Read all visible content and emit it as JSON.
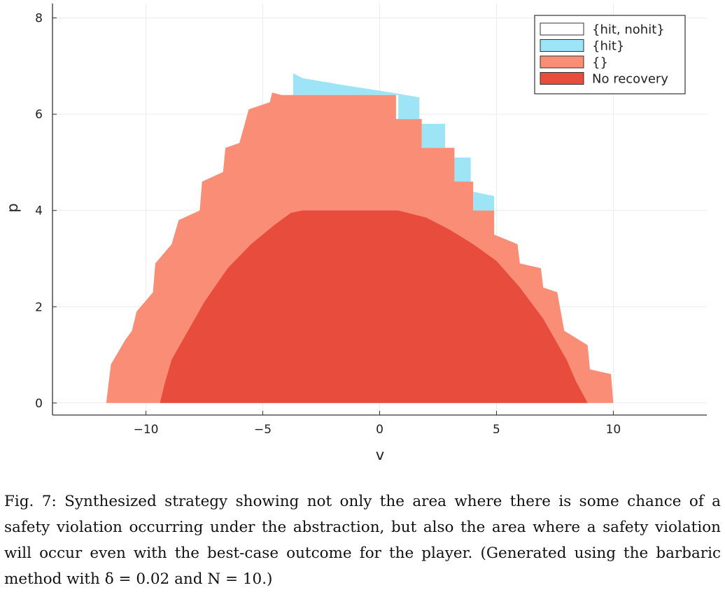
{
  "chart_data": {
    "type": "area",
    "title": "",
    "xlabel": "v",
    "ylabel": "p",
    "xlim": [
      -14,
      14
    ],
    "ylim": [
      -0.25,
      8.3
    ],
    "x_ticks": [
      -10,
      -5,
      0,
      5,
      10
    ],
    "x_tick_labels": [
      "−10",
      "−5",
      "0",
      "5",
      "10"
    ],
    "y_ticks": [
      0,
      2,
      4,
      6,
      8
    ],
    "y_tick_labels": [
      "0",
      "2",
      "4",
      "6",
      "8"
    ],
    "grid": true,
    "legend_position": "top-right",
    "legend": [
      {
        "label": "{hit, nohit}",
        "color": "#ffffff"
      },
      {
        "label": "{hit}",
        "color": "#9de4f7"
      },
      {
        "label": "{}",
        "color": "#f98d76"
      },
      {
        "label": "No recovery",
        "color": "#e74c3c"
      }
    ],
    "series": [
      {
        "name": "{hit}",
        "color": "#9de4f7",
        "outline": [
          [
            -3.7,
            6.4
          ],
          [
            -3.7,
            6.85
          ],
          [
            -3.3,
            6.75
          ],
          [
            -1.5,
            6.6
          ],
          [
            0.5,
            6.45
          ],
          [
            1.7,
            6.35
          ],
          [
            1.7,
            5.8
          ],
          [
            2.8,
            5.8
          ],
          [
            2.8,
            5.1
          ],
          [
            3.9,
            5.1
          ],
          [
            3.9,
            4.4
          ],
          [
            4.9,
            4.3
          ],
          [
            4.9,
            4.0
          ],
          [
            4.0,
            4.0
          ],
          [
            4.0,
            4.6
          ],
          [
            3.2,
            4.6
          ],
          [
            3.2,
            5.3
          ],
          [
            1.8,
            5.3
          ],
          [
            1.8,
            5.9
          ],
          [
            0.8,
            5.9
          ],
          [
            0.8,
            6.4
          ]
        ]
      },
      {
        "name": "{}",
        "color": "#f98d76",
        "outline": [
          [
            -11.7,
            0
          ],
          [
            -11.6,
            0.4
          ],
          [
            -11.5,
            0.8
          ],
          [
            -10.9,
            1.3
          ],
          [
            -10.6,
            1.5
          ],
          [
            -10.4,
            1.9
          ],
          [
            -9.7,
            2.3
          ],
          [
            -9.6,
            2.9
          ],
          [
            -8.9,
            3.3
          ],
          [
            -8.6,
            3.8
          ],
          [
            -7.7,
            4.0
          ],
          [
            -7.6,
            4.6
          ],
          [
            -6.7,
            4.8
          ],
          [
            -6.6,
            5.3
          ],
          [
            -6.0,
            5.4
          ],
          [
            -5.6,
            6.1
          ],
          [
            -4.7,
            6.25
          ],
          [
            -4.6,
            6.45
          ],
          [
            -4.2,
            6.4
          ],
          [
            0.7,
            6.4
          ],
          [
            0.7,
            5.9
          ],
          [
            1.8,
            5.9
          ],
          [
            1.8,
            5.3
          ],
          [
            3.2,
            5.3
          ],
          [
            3.2,
            4.6
          ],
          [
            4.0,
            4.6
          ],
          [
            4.0,
            4.0
          ],
          [
            4.9,
            4.0
          ],
          [
            4.9,
            3.5
          ],
          [
            5.9,
            3.3
          ],
          [
            6.0,
            2.9
          ],
          [
            6.9,
            2.8
          ],
          [
            7.0,
            2.4
          ],
          [
            7.6,
            2.3
          ],
          [
            7.9,
            1.5
          ],
          [
            8.9,
            1.2
          ],
          [
            9.0,
            0.7
          ],
          [
            9.9,
            0.6
          ],
          [
            10.0,
            0
          ]
        ]
      },
      {
        "name": "No recovery",
        "color": "#e74c3c",
        "outline": [
          [
            -9.4,
            0
          ],
          [
            -9.2,
            0.4
          ],
          [
            -8.9,
            0.9
          ],
          [
            -8.2,
            1.5
          ],
          [
            -7.5,
            2.1
          ],
          [
            -6.5,
            2.8
          ],
          [
            -5.5,
            3.3
          ],
          [
            -4.5,
            3.7
          ],
          [
            -3.8,
            3.95
          ],
          [
            -3.3,
            4.0
          ],
          [
            0.8,
            4.0
          ],
          [
            2.0,
            3.85
          ],
          [
            3.0,
            3.6
          ],
          [
            4.0,
            3.3
          ],
          [
            5.0,
            2.95
          ],
          [
            6.0,
            2.4
          ],
          [
            7.0,
            1.75
          ],
          [
            8.0,
            0.9
          ],
          [
            8.4,
            0.45
          ],
          [
            8.9,
            0
          ]
        ]
      }
    ]
  },
  "caption": {
    "text": "Fig. 7: Synthesized strategy showing not only the area where there is some chance of a safety violation occurring under the abstraction, but also the area where a safety violation will occur even with the best-case outcome for the player. (Generated using the barbaric method with δ = 0.02 and N = 10.)"
  }
}
